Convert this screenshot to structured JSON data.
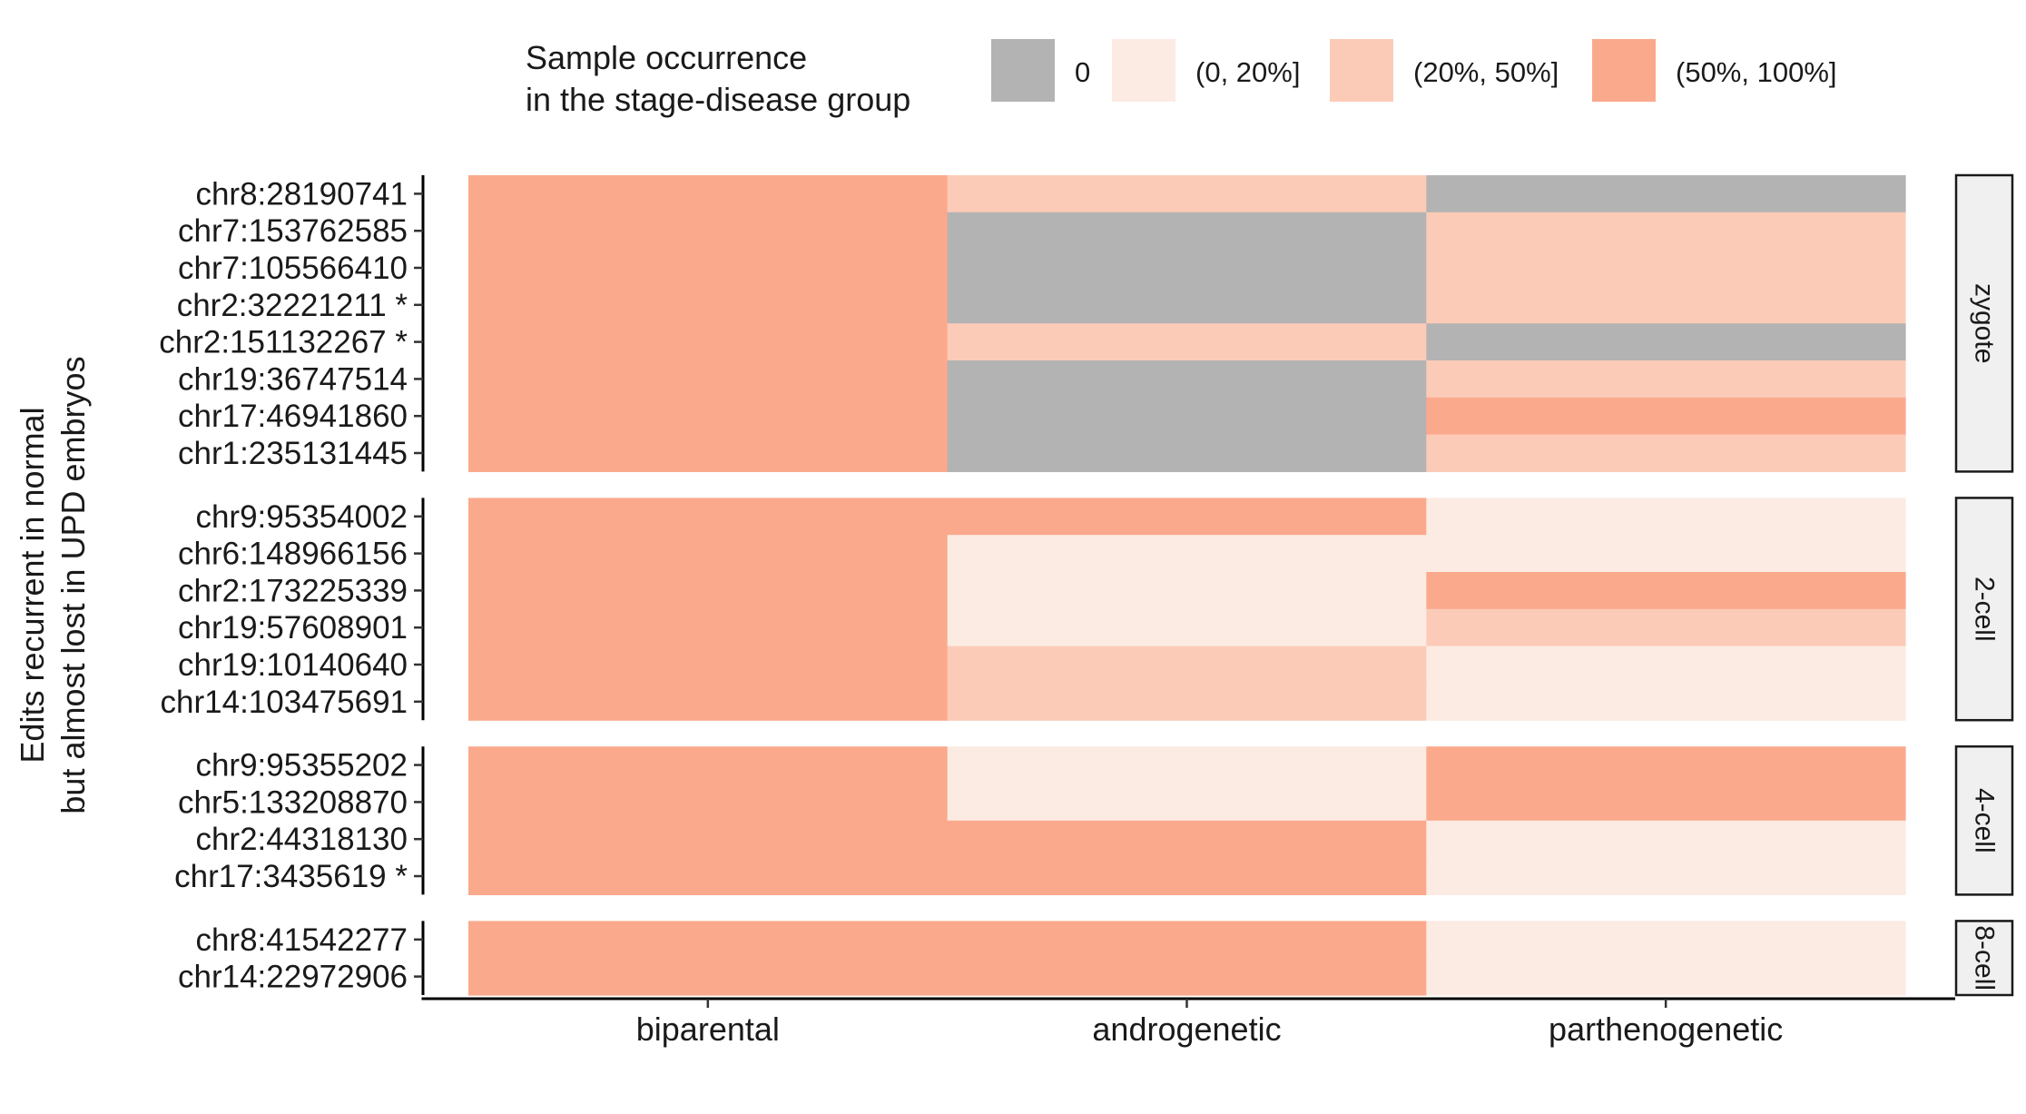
{
  "chart_data": {
    "type": "heatmap",
    "ylabel_lines": [
      "Edits recurrent in normal",
      "but almost lost in UPD embryos"
    ],
    "xlabel": "",
    "x_categories": [
      "biparental",
      "androgenetic",
      "parthenogenetic"
    ],
    "legend": {
      "title_lines": [
        "Sample occurrence",
        "in the stage-disease group"
      ],
      "position": "top",
      "levels": [
        {
          "label": "0",
          "color": "#b3b3b3"
        },
        {
          "label": "(0, 20%]",
          "color": "#fcebe3"
        },
        {
          "label": "(20%, 50%]",
          "color": "#fccbb8"
        },
        {
          "label": "(50%, 100%]",
          "color": "#fba98c"
        }
      ]
    },
    "panels": [
      {
        "strip": "zygote",
        "rows": [
          {
            "label": "chr8:28190741",
            "values": [
              "(50%, 100%]",
              "(20%, 50%]",
              "0"
            ]
          },
          {
            "label": "chr7:153762585",
            "values": [
              "(50%, 100%]",
              "0",
              "(20%, 50%]"
            ]
          },
          {
            "label": "chr7:105566410",
            "values": [
              "(50%, 100%]",
              "0",
              "(20%, 50%]"
            ]
          },
          {
            "label": "chr2:32221211 *",
            "values": [
              "(50%, 100%]",
              "0",
              "(20%, 50%]"
            ]
          },
          {
            "label": "chr2:151132267 *",
            "values": [
              "(50%, 100%]",
              "(20%, 50%]",
              "0"
            ]
          },
          {
            "label": "chr19:36747514",
            "values": [
              "(50%, 100%]",
              "0",
              "(20%, 50%]"
            ]
          },
          {
            "label": "chr17:46941860",
            "values": [
              "(50%, 100%]",
              "0",
              "(50%, 100%]"
            ]
          },
          {
            "label": "chr1:235131445",
            "values": [
              "(50%, 100%]",
              "0",
              "(20%, 50%]"
            ]
          }
        ]
      },
      {
        "strip": "2-cell",
        "rows": [
          {
            "label": "chr9:95354002",
            "values": [
              "(50%, 100%]",
              "(50%, 100%]",
              "(0, 20%]"
            ]
          },
          {
            "label": "chr6:148966156",
            "values": [
              "(50%, 100%]",
              "(0, 20%]",
              "(0, 20%]"
            ]
          },
          {
            "label": "chr2:173225339",
            "values": [
              "(50%, 100%]",
              "(0, 20%]",
              "(50%, 100%]"
            ]
          },
          {
            "label": "chr19:57608901",
            "values": [
              "(50%, 100%]",
              "(0, 20%]",
              "(20%, 50%]"
            ]
          },
          {
            "label": "chr19:10140640",
            "values": [
              "(50%, 100%]",
              "(20%, 50%]",
              "(0, 20%]"
            ]
          },
          {
            "label": "chr14:103475691",
            "values": [
              "(50%, 100%]",
              "(20%, 50%]",
              "(0, 20%]"
            ]
          }
        ]
      },
      {
        "strip": "4-cell",
        "rows": [
          {
            "label": "chr9:95355202",
            "values": [
              "(50%, 100%]",
              "(0, 20%]",
              "(50%, 100%]"
            ]
          },
          {
            "label": "chr5:133208870",
            "values": [
              "(50%, 100%]",
              "(0, 20%]",
              "(50%, 100%]"
            ]
          },
          {
            "label": "chr2:44318130",
            "values": [
              "(50%, 100%]",
              "(50%, 100%]",
              "(0, 20%]"
            ]
          },
          {
            "label": "chr17:3435619 *",
            "values": [
              "(50%, 100%]",
              "(50%, 100%]",
              "(0, 20%]"
            ]
          }
        ]
      },
      {
        "strip": "8-cell",
        "rows": [
          {
            "label": "chr8:41542277",
            "values": [
              "(50%, 100%]",
              "(50%, 100%]",
              "(0, 20%]"
            ]
          },
          {
            "label": "chr14:22972906",
            "values": [
              "(50%, 100%]",
              "(50%, 100%]",
              "(0, 20%]"
            ]
          }
        ]
      }
    ],
    "grid": false
  }
}
